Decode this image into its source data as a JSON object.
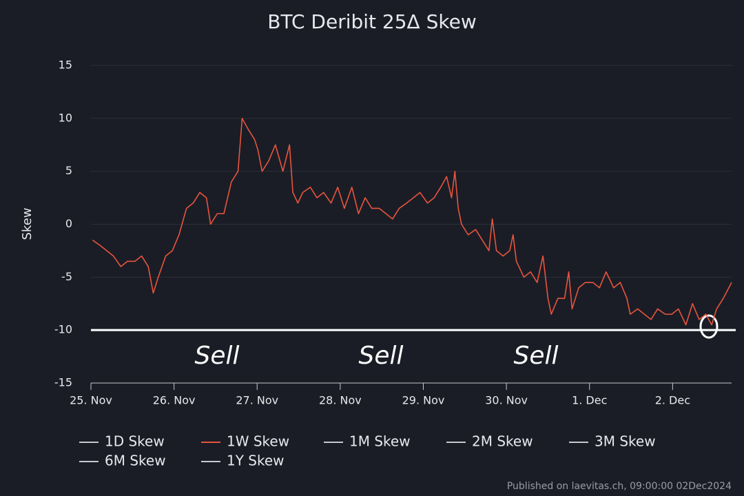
{
  "chart_data": {
    "type": "line",
    "title": "BTC Deribit 25Δ Skew",
    "y_label": "Skew",
    "footer": "Published on laevitas.ch, 09:00:00 02Dec2024",
    "xlim": [
      0,
      7.71
    ],
    "xticks": [
      {
        "value": 0,
        "label": "25. Nov"
      },
      {
        "value": 1,
        "label": "26. Nov"
      },
      {
        "value": 2,
        "label": "27. Nov"
      },
      {
        "value": 3,
        "label": "28. Nov"
      },
      {
        "value": 4,
        "label": "29. Nov"
      },
      {
        "value": 5,
        "label": "30. Nov"
      },
      {
        "value": 6,
        "label": "1. Dec"
      },
      {
        "value": 7,
        "label": "2. Dec"
      }
    ],
    "ylim": [
      -15,
      15
    ],
    "yticks": [
      15,
      10,
      5,
      0,
      -5,
      -10,
      -15
    ],
    "grid": true,
    "x": [
      0.02,
      0.11,
      0.19,
      0.27,
      0.36,
      0.44,
      0.53,
      0.61,
      0.69,
      0.75,
      0.81,
      0.9,
      0.98,
      1.06,
      1.15,
      1.23,
      1.31,
      1.39,
      1.44,
      1.52,
      1.6,
      1.69,
      1.77,
      1.82,
      1.89,
      1.97,
      2.01,
      2.06,
      2.14,
      2.22,
      2.31,
      2.39,
      2.43,
      2.49,
      2.55,
      2.64,
      2.72,
      2.8,
      2.89,
      2.97,
      3.05,
      3.14,
      3.22,
      3.3,
      3.38,
      3.47,
      3.55,
      3.63,
      3.71,
      3.8,
      3.88,
      3.96,
      4.05,
      4.13,
      4.21,
      4.28,
      4.34,
      4.38,
      4.42,
      4.46,
      4.54,
      4.63,
      4.71,
      4.79,
      4.83,
      4.88,
      4.96,
      5.04,
      5.08,
      5.12,
      5.21,
      5.29,
      5.37,
      5.44,
      5.5,
      5.54,
      5.62,
      5.7,
      5.75,
      5.79,
      5.87,
      5.95,
      6.04,
      6.12,
      6.2,
      6.29,
      6.37,
      6.45,
      6.49,
      6.58,
      6.66,
      6.74,
      6.82,
      6.91,
      6.99,
      7.07,
      7.16,
      7.24,
      7.32,
      7.4,
      7.47,
      7.53,
      7.61,
      7.71
    ],
    "series": [
      {
        "name": "1D Skew",
        "color": "#c8c8d0",
        "visible": false
      },
      {
        "name": "1W Skew",
        "color": "#e8553e",
        "visible": true,
        "values": [
          -1.5,
          -2,
          -2.5,
          -3,
          -4,
          -3.5,
          -3.5,
          -3,
          -4,
          -6.5,
          -5,
          -3,
          -2.5,
          -1,
          1.5,
          2,
          3,
          2.5,
          0,
          1,
          1,
          4,
          5,
          10,
          9,
          8,
          7,
          5,
          6,
          7.5,
          5,
          7.5,
          3,
          2,
          3,
          3.5,
          2.5,
          3,
          2,
          3.5,
          1.5,
          3.5,
          1,
          2.5,
          1.5,
          1.5,
          1,
          0.5,
          1.5,
          2,
          2.5,
          3,
          2,
          2.5,
          3.5,
          4.5,
          2.5,
          5,
          1.5,
          0,
          -1,
          -0.5,
          -1.5,
          -2.5,
          0.5,
          -2.5,
          -3,
          -2.5,
          -1,
          -3.5,
          -5,
          -4.5,
          -5.5,
          -3,
          -7,
          -8.5,
          -7,
          -7,
          -4.5,
          -8,
          -6,
          -5.5,
          -5.5,
          -6,
          -4.5,
          -6,
          -5.5,
          -7,
          -8.5,
          -8,
          -8.5,
          -9,
          -8,
          -8.5,
          -8.5,
          -8,
          -9.5,
          -7.5,
          -9,
          -8.5,
          -9.5,
          -8,
          -7,
          -5.5
        ]
      },
      {
        "name": "1M Skew",
        "color": "#c8c8d0",
        "visible": false
      },
      {
        "name": "2M Skew",
        "color": "#c8c8d0",
        "visible": false
      },
      {
        "name": "3M Skew",
        "color": "#c8c8d0",
        "visible": false
      },
      {
        "name": "6M Skew",
        "color": "#c8c8d0",
        "visible": false
      },
      {
        "name": "1Y Skew",
        "color": "#c8c8d0",
        "visible": false
      }
    ],
    "annotations": {
      "texts": [
        "Sell",
        "Sell",
        "Sell"
      ],
      "hline": -10,
      "color": "#ffffff"
    }
  }
}
